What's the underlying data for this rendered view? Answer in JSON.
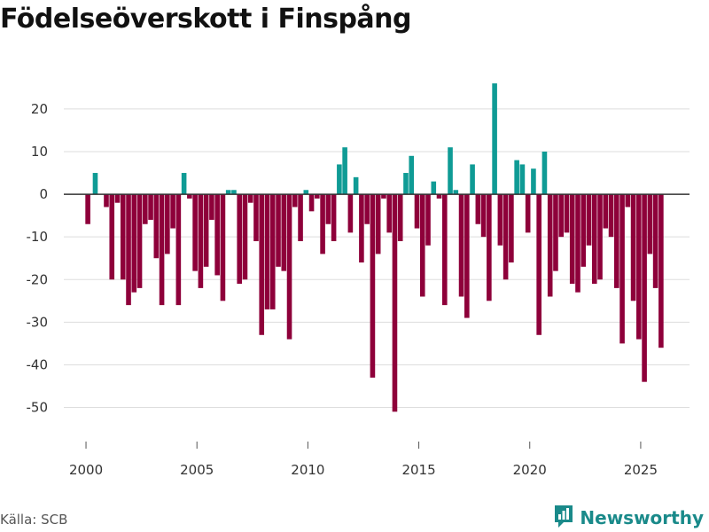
{
  "header": {
    "title": "Födelseöverskott i Finspång"
  },
  "footer": {
    "source": "Källa: SCB",
    "brand": "Newsworthy"
  },
  "colors": {
    "positive": "#0f9b95",
    "negative": "#8e003a",
    "grid": "#dddddd",
    "zero": "#333333",
    "brand": "#1a8a8a"
  },
  "icons": {
    "brand_logo": "newsworthy-logo-icon"
  },
  "chart_data": {
    "type": "bar",
    "title": "Födelseöverskott i Finspång",
    "xlabel": "",
    "ylabel": "",
    "ylim": [
      -58,
      31
    ],
    "xlim": [
      1999.0,
      2027.2
    ],
    "yticks": [
      -50,
      -40,
      -30,
      -20,
      -10,
      0,
      10,
      20
    ],
    "xticks": [
      2000,
      2005,
      2010,
      2015,
      2020,
      2025
    ],
    "grid": true,
    "series": [
      {
        "name": "Födelseöverskott",
        "x": [
          2000.083,
          2000.417,
          2000.917,
          2001.167,
          2001.417,
          2001.667,
          2001.917,
          2002.167,
          2002.417,
          2002.667,
          2002.917,
          2003.167,
          2003.417,
          2003.667,
          2003.917,
          2004.167,
          2004.417,
          2004.667,
          2004.917,
          2005.167,
          2005.417,
          2005.667,
          2005.917,
          2006.167,
          2006.417,
          2006.667,
          2006.917,
          2007.167,
          2007.417,
          2007.667,
          2007.917,
          2008.167,
          2008.417,
          2008.667,
          2008.917,
          2009.167,
          2009.417,
          2009.667,
          2009.917,
          2010.167,
          2010.417,
          2010.667,
          2010.917,
          2011.167,
          2011.417,
          2011.667,
          2011.917,
          2012.167,
          2012.417,
          2012.667,
          2012.917,
          2013.167,
          2013.417,
          2013.667,
          2013.917,
          2014.167,
          2014.417,
          2014.667,
          2014.917,
          2015.167,
          2015.417,
          2015.667,
          2015.917,
          2016.167,
          2016.417,
          2016.667,
          2016.917,
          2017.167,
          2017.417,
          2017.667,
          2017.917,
          2018.167,
          2018.417,
          2018.667,
          2018.917,
          2019.167,
          2019.417,
          2019.667,
          2019.917,
          2020.167,
          2020.417,
          2020.667,
          2020.917,
          2021.167,
          2021.417,
          2021.667,
          2021.917,
          2022.167,
          2022.417,
          2022.667,
          2022.917,
          2023.167,
          2023.417,
          2023.667,
          2023.917,
          2024.167,
          2024.417,
          2024.667,
          2024.917,
          2025.167,
          2025.417,
          2025.667,
          2025.917
        ],
        "values": [
          -7,
          5,
          -3,
          -20,
          -2,
          -20,
          -26,
          -23,
          -22,
          -7,
          -6,
          -15,
          -26,
          -14,
          -8,
          -26,
          5,
          -1,
          -18,
          -22,
          -17,
          -6,
          -19,
          -25,
          1,
          1,
          -21,
          -20,
          -2,
          -11,
          -33,
          -27,
          -27,
          -17,
          -18,
          -34,
          -3,
          -11,
          1,
          -4,
          -1,
          -14,
          -7,
          -11,
          7,
          11,
          -9,
          4,
          -16,
          -7,
          -43,
          -14,
          -1,
          -9,
          -51,
          -11,
          5,
          9,
          -8,
          -24,
          -12,
          3,
          -1,
          -26,
          11,
          1,
          -24,
          -29,
          7,
          -7,
          -10,
          -25,
          26,
          -12,
          -20,
          -16,
          8,
          7,
          -9,
          6,
          -33,
          10,
          -24,
          -18,
          -10,
          -9,
          -21,
          -23,
          -17,
          -12,
          -21,
          -20,
          -8,
          -10,
          -22,
          -35,
          -3,
          -25,
          -34,
          -44,
          -14,
          -22,
          -36
        ]
      }
    ]
  }
}
